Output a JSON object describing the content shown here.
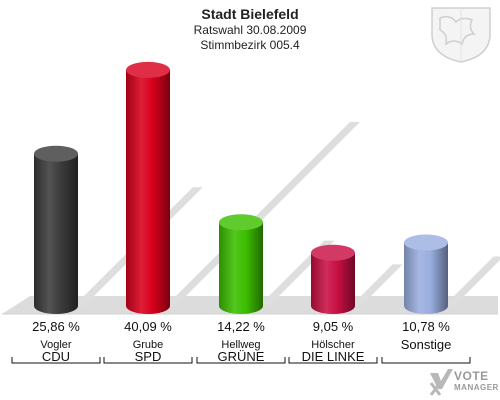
{
  "header": {
    "title": "Stadt Bielefeld",
    "subtitle": "Ratswahl 30.08.2009",
    "district": "Stimmbezirk 005.4"
  },
  "logo": {
    "line1": "VOTE",
    "line2": "MANAGER"
  },
  "chart_data": {
    "type": "bar",
    "style": "3d-cylinder",
    "unit": "%",
    "ylim": [
      0,
      45
    ],
    "grid": false,
    "legend": "none",
    "categories": [
      "CDU",
      "SPD",
      "GRÜNE",
      "DIE LINKE",
      "Sonstige"
    ],
    "candidates": [
      "Vogler",
      "Grube",
      "Hellweg",
      "Hölscher",
      ""
    ],
    "values": [
      25.86,
      40.09,
      14.22,
      9.05,
      10.78
    ],
    "value_labels": [
      "25,86 %",
      "40,09 %",
      "14,22 %",
      "9,05 %",
      "10,78 %"
    ],
    "colors": [
      "#3c3c3c",
      "#d8001c",
      "#3cbf00",
      "#c80f43",
      "#9aaee0"
    ]
  }
}
